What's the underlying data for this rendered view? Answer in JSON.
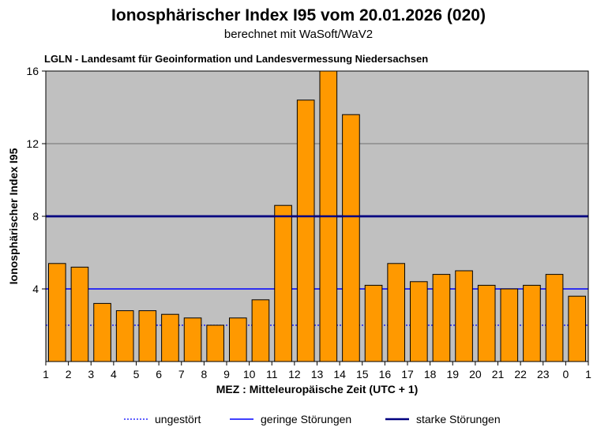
{
  "chart_data": {
    "type": "bar",
    "title": "Ionosphärischer Index I95 vom 20.01.2026 (020)",
    "subtitle": "berechnet mit WaSoft/WaV2",
    "source": "LGLN - Landesamt für Geoinformation und Landesvermessung Niedersachsen",
    "xlabel": "MEZ : Mitteleuropäische Zeit (UTC + 1)",
    "ylabel": "Ionosphärischer Index I95",
    "ylim": [
      0,
      16
    ],
    "yticks": [
      "4",
      "8",
      "12",
      "16"
    ],
    "xticks": [
      "1",
      "2",
      "3",
      "4",
      "5",
      "6",
      "7",
      "8",
      "9",
      "10",
      "11",
      "12",
      "13",
      "14",
      "15",
      "16",
      "17",
      "18",
      "19",
      "20",
      "21",
      "22",
      "23",
      "0",
      "1"
    ],
    "values": [
      5.4,
      5.2,
      3.2,
      2.8,
      2.8,
      2.6,
      2.4,
      2.0,
      2.4,
      3.4,
      8.6,
      14.4,
      16.0,
      13.6,
      4.2,
      5.4,
      4.4,
      4.8,
      5.0,
      4.2,
      4.0,
      4.2,
      4.8,
      3.6
    ],
    "grid": true,
    "bar_color": "#ff9900",
    "background_color": "#c0c0c0",
    "thresholds": [
      {
        "name": "ungestört",
        "value": 2,
        "color": "#0000ff",
        "style": "dotted"
      },
      {
        "name": "geringe Störungen",
        "value": 4,
        "color": "#0000ff",
        "style": "solid"
      },
      {
        "name": "starke Störungen",
        "value": 8,
        "color": "#000080",
        "style": "thick"
      }
    ],
    "legend_position": "bottom"
  }
}
